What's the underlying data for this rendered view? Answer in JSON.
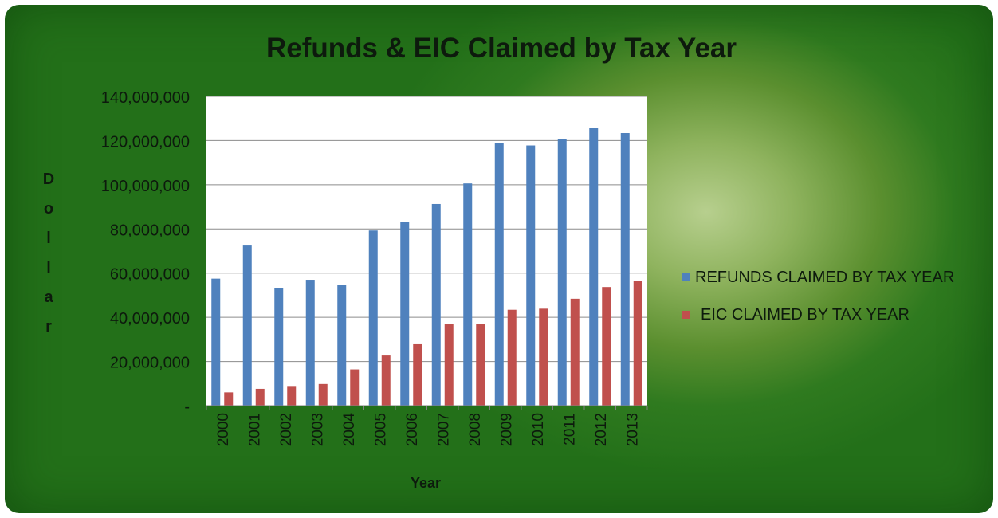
{
  "chart_data": {
    "type": "bar",
    "title": "Refunds & EIC Claimed by Tax Year",
    "xlabel": "Year",
    "ylabel": "Dollar",
    "ylim": [
      0,
      140000000
    ],
    "y_ticks": [
      0,
      20000000,
      40000000,
      60000000,
      80000000,
      100000000,
      120000000,
      140000000
    ],
    "y_tick_labels": [
      "-",
      "20,000,000",
      "40,000,000",
      "60,000,000",
      "80,000,000",
      "100,000,000",
      "120,000,000",
      "140,000,000"
    ],
    "categories": [
      "2000",
      "2001",
      "2002",
      "2003",
      "2004",
      "2005",
      "2006",
      "2007",
      "2008",
      "2009",
      "2010",
      "2011",
      "2012",
      "2013"
    ],
    "series": [
      {
        "name": "REFUNDS CLAIMED BY TAX YEAR",
        "color": "#4f81bd",
        "values": [
          57500000,
          72500000,
          53200000,
          57000000,
          54600000,
          79300000,
          83200000,
          91300000,
          100600000,
          118800000,
          117800000,
          120600000,
          125700000,
          123400000
        ]
      },
      {
        "name": "EIC CLAIMED BY TAX YEAR",
        "color": "#c0504d",
        "values": [
          6000000,
          7600000,
          8900000,
          9800000,
          16400000,
          22700000,
          27800000,
          36800000,
          36800000,
          43400000,
          43900000,
          48400000,
          53700000,
          56400000
        ]
      }
    ],
    "grid": true,
    "legend_position": "right"
  }
}
